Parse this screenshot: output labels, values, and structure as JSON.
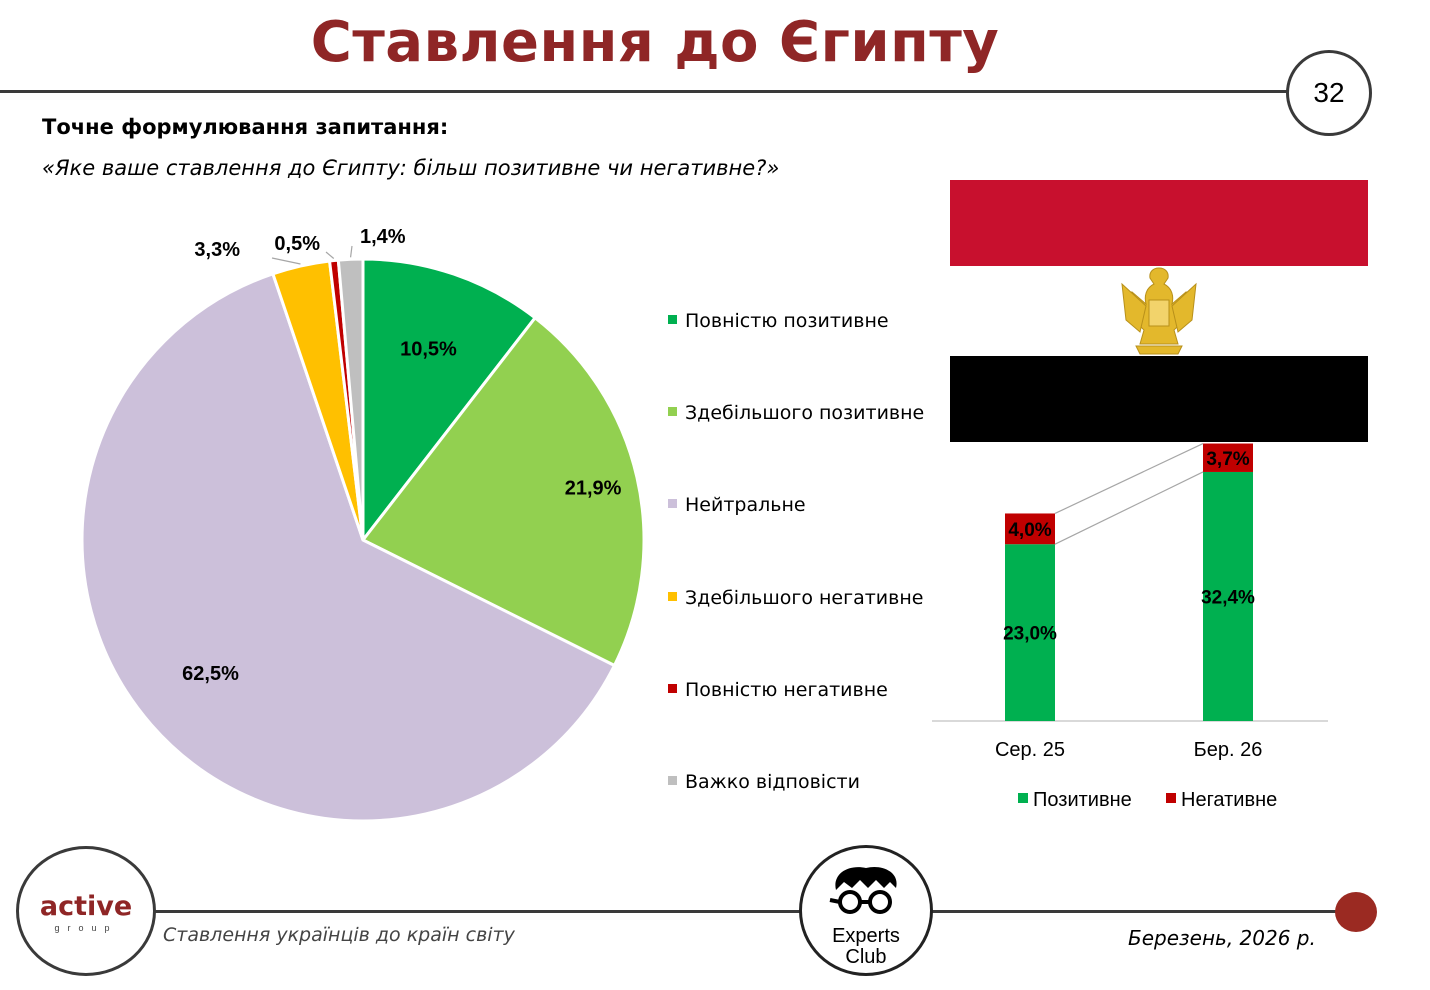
{
  "header": {
    "title": "Ставлення до Єгипту",
    "page_number": "32"
  },
  "question": {
    "label": "Точне формулювання запитання:",
    "text": "«Яке ваше ставлення до Єгипту: більш позитивне чи негативне?»"
  },
  "chart_data": [
    {
      "type": "pie",
      "categories": [
        "Повністю позитивне",
        "Здебільшого позитивне",
        "Нейтральне",
        "Здебільшого негативне",
        "Повністю негативне",
        "Важко відповісти"
      ],
      "values": [
        10.5,
        21.9,
        62.5,
        3.3,
        0.5,
        1.4
      ],
      "value_labels": [
        "10,5%",
        "21,9%",
        "62,5%",
        "3,3%",
        "0,5%",
        "1,4%"
      ],
      "colors": [
        "#00b050",
        "#92d050",
        "#ccc0da",
        "#ffc000",
        "#c00000",
        "#bfbfbf"
      ],
      "legend_placement": "right"
    },
    {
      "type": "bar",
      "stacked": true,
      "categories": [
        "Сер. 25",
        "Бер. 26"
      ],
      "series": [
        {
          "name": "Позитивне",
          "values": [
            23.0,
            32.4
          ],
          "labels": [
            "23,0%",
            "32,4%"
          ],
          "color": "#00b050"
        },
        {
          "name": "Негативне",
          "values": [
            4.0,
            3.7
          ],
          "labels": [
            "4,0%",
            "3,7%"
          ],
          "color": "#c00000"
        }
      ],
      "ylim": [
        0,
        45
      ],
      "grid": false,
      "legend_placement": "bottom"
    }
  ],
  "footer": {
    "left_text": "Ставлення українців до країн світу",
    "right_text": "Березень, 2026 р.",
    "logo_left_word": "active",
    "logo_left_sub": "group",
    "logo_right_line1": "Experts",
    "logo_right_line2": "Club"
  },
  "icons": [
    "egypt-flag-icon",
    "eagle-emblem-icon",
    "experts-club-face-icon"
  ]
}
